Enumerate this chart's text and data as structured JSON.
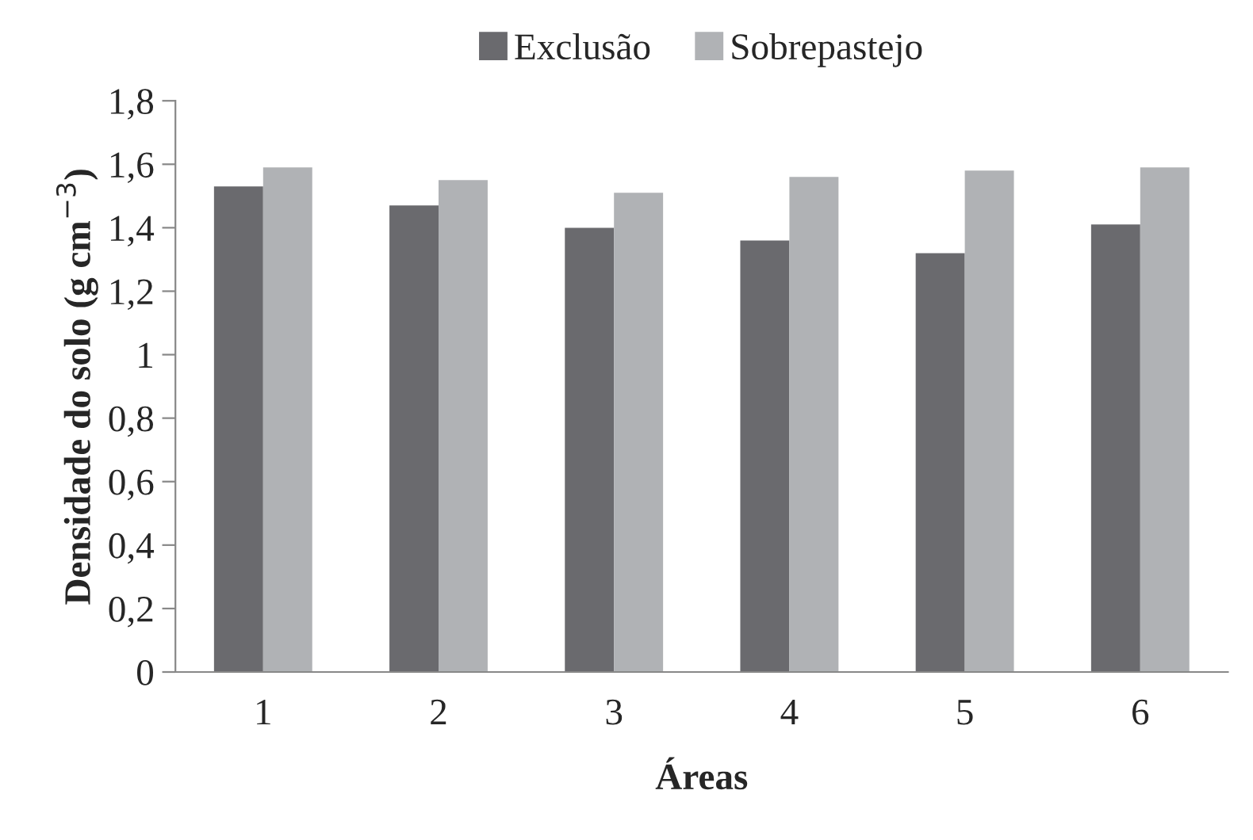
{
  "chart_data": {
    "type": "bar",
    "xlabel": "Áreas",
    "ylabel": "Densidade do solo (g cm$^{−3}$)",
    "categories": [
      "1",
      "2",
      "3",
      "4",
      "5",
      "6"
    ],
    "series": [
      {
        "name": "Exclusão",
        "color": "#6a6a6e",
        "values": [
          1.53,
          1.47,
          1.4,
          1.36,
          1.32,
          1.41
        ]
      },
      {
        "name": "Sobrepastejo",
        "color": "#b0b2b5",
        "values": [
          1.59,
          1.55,
          1.51,
          1.56,
          1.58,
          1.59
        ]
      }
    ],
    "ylim": [
      0,
      1.8
    ],
    "yticks": [
      {
        "value": 0,
        "label": "0"
      },
      {
        "value": 0.2,
        "label": "0,2"
      },
      {
        "value": 0.4,
        "label": "0,4"
      },
      {
        "value": 0.6,
        "label": "0,6"
      },
      {
        "value": 0.8,
        "label": "0,8"
      },
      {
        "value": 1,
        "label": "1"
      },
      {
        "value": 1.2,
        "label": "1,2"
      },
      {
        "value": 1.4,
        "label": "1,4"
      },
      {
        "value": 1.6,
        "label": "1,6"
      },
      {
        "value": 1.8,
        "label": "1,8"
      }
    ],
    "grid": false,
    "legend": "top"
  }
}
